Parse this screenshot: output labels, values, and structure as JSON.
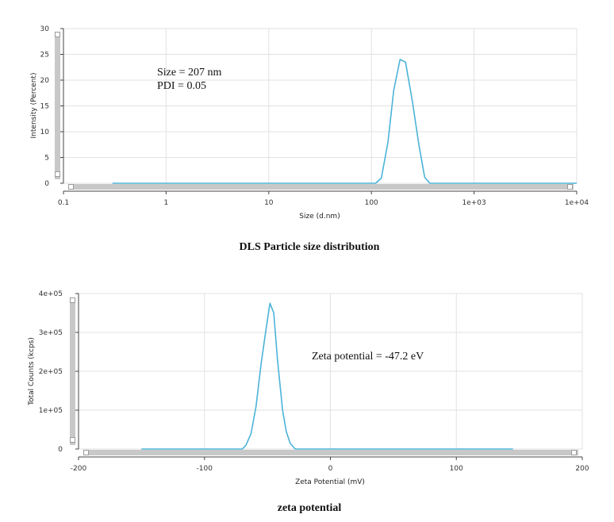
{
  "chart_data": [
    {
      "type": "line",
      "xlabel": "Size (d.nm)",
      "ylabel": "Intensity (Percent)",
      "x_scale": "log",
      "xlim": [
        0.1,
        10000
      ],
      "ylim": [
        0,
        30
      ],
      "x_tick_labels": [
        "0.1",
        "1",
        "10",
        "100",
        "1e+03",
        "1e+04"
      ],
      "y_tick_labels": [
        "0",
        "5",
        "10",
        "15",
        "20",
        "25",
        "30"
      ],
      "grid": true,
      "color": "#4bb3d8",
      "annotations": [
        "Size = 207 nm",
        "PDI = 0.05"
      ],
      "caption": "DLS Particle size distribution",
      "series": [
        {
          "x": [
            0.3,
            110,
            125,
            145,
            165,
            190,
            215,
            250,
            290,
            330,
            370,
            420,
            10000
          ],
          "y": [
            0,
            0,
            1,
            8,
            18,
            24,
            23.5,
            16,
            7.5,
            1.2,
            0,
            0,
            0
          ]
        }
      ]
    },
    {
      "type": "line",
      "xlabel": "Zeta Potential (mV)",
      "ylabel": "Total Counts (kcps)",
      "xlim": [
        -200,
        200
      ],
      "ylim": [
        0,
        400000
      ],
      "x_tick_labels": [
        "-200",
        "-100",
        "0",
        "100",
        "200"
      ],
      "y_tick_labels": [
        "0",
        "1e+05",
        "2e+05",
        "3e+05",
        "4e+05"
      ],
      "grid": true,
      "color": "#4bb3d8",
      "annotations": [
        "Zeta potential = -47.2 eV"
      ],
      "caption": "zeta potential",
      "series": [
        {
          "x": [
            -150,
            -70,
            -67,
            -63,
            -59,
            -55,
            -51,
            -48,
            -45,
            -42,
            -38,
            -35,
            -32,
            -28,
            145
          ],
          "y": [
            0,
            0,
            10000,
            40000,
            110000,
            220000,
            310000,
            375000,
            350000,
            230000,
            100000,
            45000,
            15000,
            0,
            0
          ]
        }
      ]
    }
  ]
}
